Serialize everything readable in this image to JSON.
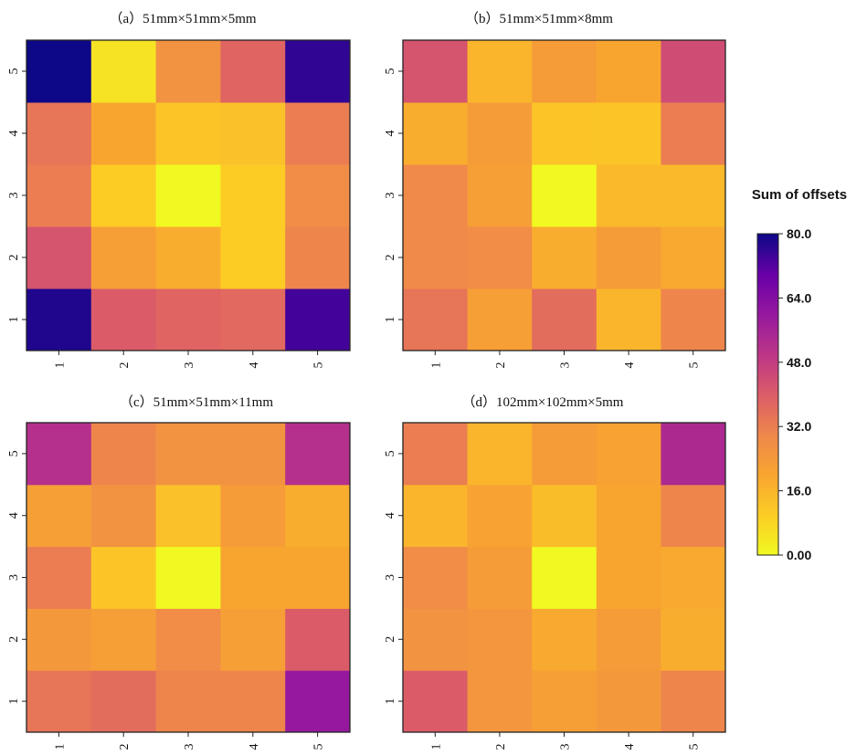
{
  "chart_data": {
    "type": "heatmap",
    "panels": [
      {
        "title": "（a）51mm×51mm×5mm",
        "x_labels": [
          "1",
          "2",
          "3",
          "4",
          "5"
        ],
        "y_labels": [
          "1",
          "2",
          "3",
          "4",
          "5"
        ],
        "rows_bottom_to_top": [
          [
            78,
            40,
            38,
            37,
            74
          ],
          [
            42,
            22,
            18,
            10,
            30
          ],
          [
            32,
            10,
            0,
            10,
            28
          ],
          [
            34,
            20,
            12,
            13,
            32
          ],
          [
            80,
            5,
            26,
            38,
            76
          ]
        ]
      },
      {
        "title": "（b）51mm×51mm×8mm",
        "x_labels": [
          "1",
          "2",
          "3",
          "4",
          "5"
        ],
        "y_labels": [
          "1",
          "2",
          "3",
          "4",
          "5"
        ],
        "rows_bottom_to_top": [
          [
            34,
            22,
            36,
            16,
            30
          ],
          [
            29,
            28,
            18,
            23,
            19
          ],
          [
            29,
            22,
            0,
            15,
            15
          ],
          [
            18,
            23,
            12,
            12,
            32
          ],
          [
            42,
            16,
            23,
            20,
            44
          ]
        ]
      },
      {
        "title": "（c）51mm×51mm×11mm",
        "x_labels": [
          "1",
          "2",
          "3",
          "4",
          "5"
        ],
        "y_labels": [
          "1",
          "2",
          "3",
          "4",
          "5"
        ],
        "rows_bottom_to_top": [
          [
            34,
            36,
            30,
            30,
            60
          ],
          [
            24,
            22,
            28,
            22,
            40
          ],
          [
            32,
            12,
            0,
            20,
            20
          ],
          [
            22,
            26,
            13,
            23,
            18
          ],
          [
            52,
            30,
            26,
            26,
            52
          ]
        ]
      },
      {
        "title": "（d）102mm×102mm×5mm",
        "x_labels": [
          "1",
          "2",
          "3",
          "4",
          "5"
        ],
        "y_labels": [
          "1",
          "2",
          "3",
          "4",
          "5"
        ],
        "rows_bottom_to_top": [
          [
            40,
            25,
            22,
            24,
            30
          ],
          [
            26,
            25,
            19,
            23,
            18
          ],
          [
            28,
            23,
            0,
            20,
            19
          ],
          [
            16,
            21,
            14,
            20,
            30
          ],
          [
            32,
            16,
            23,
            21,
            54
          ]
        ]
      }
    ],
    "colorbar": {
      "title": "Sum of offsets",
      "ticks": [
        "0.00",
        "16.0",
        "32.0",
        "48.0",
        "64.0",
        "80.0"
      ],
      "range": [
        0,
        80
      ],
      "colormap": "plasma (reversed)"
    },
    "colors": {
      "low": "#f0f921",
      "high": "#0d0887"
    }
  }
}
